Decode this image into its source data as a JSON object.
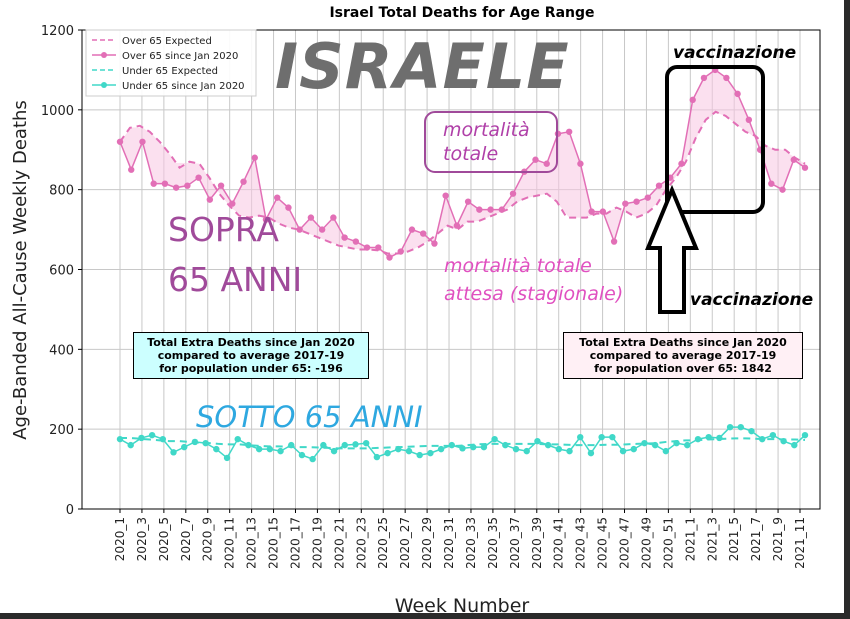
{
  "chart_data": {
    "type": "line",
    "title": "Israel Total Deaths for Age Range",
    "xlabel": "Week Number",
    "ylabel": "Age-Banded All-Cause Weekly Deaths",
    "ylim": [
      0,
      1200
    ],
    "yticks": [
      "0",
      "200",
      "400",
      "600",
      "800",
      "1000",
      "1200"
    ],
    "xtick_labels": [
      "2020_1",
      "2020_3",
      "2020_5",
      "2020_7",
      "2020_9",
      "2020_11",
      "2020_13",
      "2020_15",
      "2020_17",
      "2020_19",
      "2020_21",
      "2020_23",
      "2020_25",
      "2020_27",
      "2020_29",
      "2020_31",
      "2020_33",
      "2020_35",
      "2020_37",
      "2020_39",
      "2020_41",
      "2020_43",
      "2020_45",
      "2020_47",
      "2020_49",
      "2020_51",
      "2021_1",
      "2021_3",
      "2021_5",
      "2021_7",
      "2021_9",
      "2021_11"
    ],
    "grid": true,
    "legend_placement": "top-left",
    "series": [
      {
        "name": "Over 65 Expected",
        "color": "#e26fb6",
        "style": "dashed",
        "values": [
          920,
          955,
          960,
          945,
          920,
          890,
          855,
          870,
          865,
          830,
          790,
          760,
          735,
          730,
          735,
          730,
          715,
          705,
          700,
          690,
          680,
          670,
          660,
          655,
          650,
          650,
          648,
          640,
          640,
          645,
          655,
          670,
          690,
          710,
          700,
          720,
          720,
          730,
          740,
          750,
          770,
          780,
          785,
          790,
          770,
          730,
          730,
          730,
          740,
          740,
          755,
          745,
          730,
          740,
          760,
          800,
          830,
          870,
          930,
          975,
          995,
          985,
          965,
          945,
          935,
          910,
          900,
          900,
          880,
          865
        ]
      },
      {
        "name": "Over 65 since Jan 2020",
        "color": "#e26fb6",
        "style": "solid-markers",
        "values": [
          920,
          850,
          920,
          815,
          815,
          805,
          810,
          830,
          775,
          810,
          765,
          820,
          880,
          725,
          780,
          755,
          700,
          730,
          700,
          730,
          680,
          670,
          655,
          655,
          630,
          645,
          700,
          690,
          665,
          785,
          710,
          770,
          750,
          750,
          750,
          790,
          845,
          875,
          865,
          940,
          945,
          865,
          745,
          745,
          670,
          765,
          770,
          780,
          810,
          830,
          865,
          1025,
          1080,
          1100,
          1080,
          1040,
          975,
          900,
          815,
          800,
          875,
          855
        ]
      },
      {
        "name": "Under 65 Expected",
        "color": "#40d8c8",
        "style": "dashed",
        "values": [
          178,
          178,
          176,
          174,
          172,
          170,
          170,
          168,
          166,
          165,
          163,
          162,
          162,
          160,
          158,
          157,
          157,
          156,
          155,
          155,
          154,
          153,
          152,
          152,
          152,
          152,
          153,
          154,
          155,
          156,
          157,
          158,
          158,
          158,
          158,
          160,
          162,
          163,
          163,
          163,
          163,
          163,
          163,
          162,
          162,
          161,
          160,
          160,
          160,
          161,
          161,
          162,
          163,
          164,
          165,
          168,
          170,
          172,
          172,
          174,
          175,
          176,
          177,
          177,
          176,
          175,
          175,
          174,
          174,
          173
        ]
      },
      {
        "name": "Under 65 since Jan 2020",
        "color": "#40d8c8",
        "style": "solid-markers",
        "values": [
          175,
          160,
          178,
          185,
          175,
          142,
          155,
          168,
          165,
          150,
          128,
          175,
          160,
          150,
          150,
          145,
          160,
          135,
          125,
          160,
          145,
          160,
          162,
          165,
          130,
          140,
          150,
          145,
          135,
          140,
          150,
          160,
          152,
          155,
          155,
          175,
          160,
          150,
          145,
          170,
          160,
          150,
          145,
          180,
          140,
          180,
          180,
          145,
          150,
          165,
          160,
          145,
          165,
          160,
          175,
          180,
          178,
          205,
          205,
          195,
          175,
          185,
          170,
          160,
          185
        ]
      }
    ]
  },
  "legend": {
    "items": [
      {
        "label": "Over 65 Expected"
      },
      {
        "label": "Over 65 since Jan 2020"
      },
      {
        "label": "Under 65 Expected"
      },
      {
        "label": "Under 65 since Jan 2020"
      }
    ]
  },
  "info_boxes": {
    "under": {
      "line1": "Total Extra Deaths since Jan 2020",
      "line2": "compared to average 2017-19",
      "line3": "for population under 65: -196",
      "bg": "#ccffff"
    },
    "over": {
      "line1": "Total Extra Deaths since Jan 2020",
      "line2": "compared to average 2017-19",
      "line3": "for population over 65: 1842",
      "bg": "#fff0f5"
    }
  },
  "annotations": {
    "israele": "ISRAELE",
    "sopra_line1": "SOPRA",
    "sopra_line2": "65  ANNI",
    "mortalita_line1": "mortalità",
    "mortalita_line2": "totale",
    "attesa_line1": "mortalità totale",
    "attesa_line2": "attesa (stagionale)",
    "vacc_top": "vaccinazione",
    "vacc_bottom": "vaccinazione",
    "sotto": "SOTTO 65 ANNI"
  }
}
